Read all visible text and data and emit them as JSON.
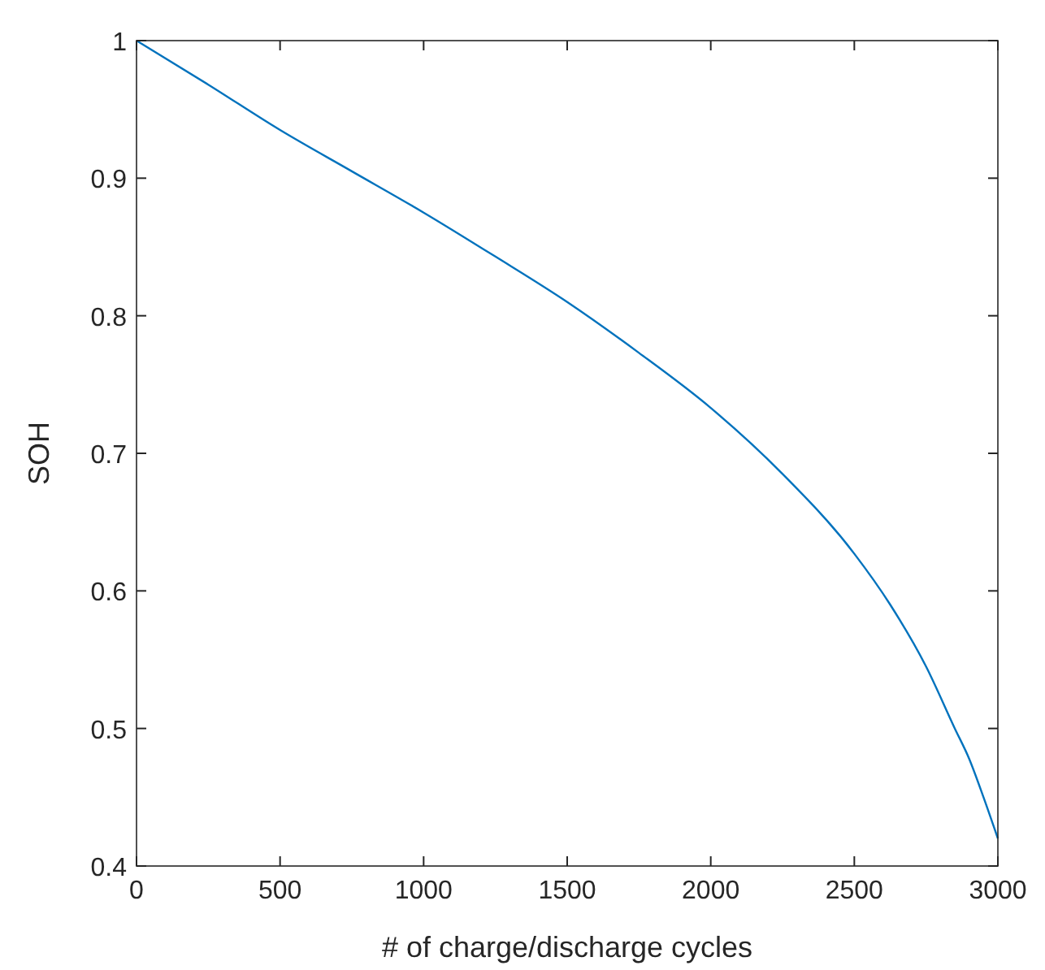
{
  "chart_data": {
    "type": "line",
    "xlabel": "# of charge/discharge cycles",
    "ylabel": "SOH",
    "x": [
      0,
      250,
      500,
      750,
      1000,
      1250,
      1500,
      1750,
      2000,
      2250,
      2500,
      2625,
      2750,
      2850,
      2900,
      2950,
      3000
    ],
    "series": [
      {
        "color": "#0072bd",
        "values": [
          1.0,
          0.968,
          0.935,
          0.905,
          0.875,
          0.843,
          0.81,
          0.773,
          0.733,
          0.685,
          0.627,
          0.59,
          0.545,
          0.5,
          0.478,
          0.45,
          0.42
        ]
      }
    ],
    "xlim": [
      0,
      3000
    ],
    "xticks": [
      0,
      500,
      1000,
      1500,
      2000,
      2500,
      3000
    ],
    "ylim": [
      0.4,
      1
    ],
    "yticks": [
      0.4,
      0.5,
      0.6,
      0.7,
      0.8,
      0.9,
      1
    ],
    "grid": false,
    "marker": "none",
    "line_style": "solid"
  }
}
